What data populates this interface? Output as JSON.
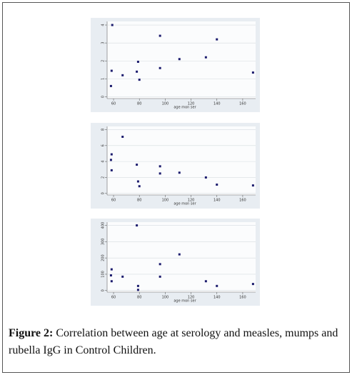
{
  "chart_data": [
    {
      "type": "scatter",
      "color": "#1c1c6e",
      "grid": true,
      "x": [
        58,
        58.5,
        59,
        67,
        78,
        79,
        80,
        96,
        96,
        111,
        131.5,
        140,
        168
      ],
      "values": [
        0.6,
        1.45,
        4,
        1.2,
        1.4,
        1.95,
        0.95,
        3.4,
        1.6,
        2.1,
        2.2,
        3.2,
        1.35
      ],
      "xlim": [
        55,
        170
      ],
      "xticks": [
        60,
        80,
        100,
        120,
        140,
        160
      ],
      "ylim": [
        -0.1,
        4.2
      ],
      "yticks": [
        0,
        1,
        2,
        3,
        4
      ],
      "x_label": "age mon ser"
    },
    {
      "type": "scatter",
      "color": "#1c1c6e",
      "grid": true,
      "x": [
        58,
        58.5,
        58.5,
        67,
        78,
        79,
        80,
        96,
        96,
        111,
        131.5,
        140,
        168
      ],
      "values": [
        4.2,
        4.9,
        2.9,
        7.1,
        3.6,
        1.5,
        0.9,
        3.4,
        2.5,
        2.6,
        2.0,
        1.1,
        1.0
      ],
      "xlim": [
        55,
        170
      ],
      "xticks": [
        60,
        80,
        100,
        120,
        140,
        160
      ],
      "ylim": [
        -0.2,
        8.4
      ],
      "yticks": [
        0,
        2,
        4,
        6,
        8
      ],
      "x_label": "age mon ser"
    },
    {
      "type": "scatter",
      "color": "#1c1c6e",
      "grid": true,
      "x": [
        58,
        58.5,
        58.5,
        67,
        78,
        79,
        79,
        96,
        96,
        111,
        131.5,
        140,
        168
      ],
      "values": [
        93,
        130,
        57,
        85,
        400,
        28,
        4,
        162,
        85,
        222,
        57,
        28,
        40
      ],
      "xlim": [
        55,
        170
      ],
      "xticks": [
        60,
        80,
        100,
        120,
        140,
        160
      ],
      "ylim": [
        -10,
        420
      ],
      "yticks": [
        0,
        100,
        200,
        300,
        400
      ],
      "x_label": "age mon ser"
    }
  ],
  "caption": {
    "label": "Figure 2:",
    "text": "Correlation between age at serology and measles, mumps and rubella IgG in Control Children."
  }
}
